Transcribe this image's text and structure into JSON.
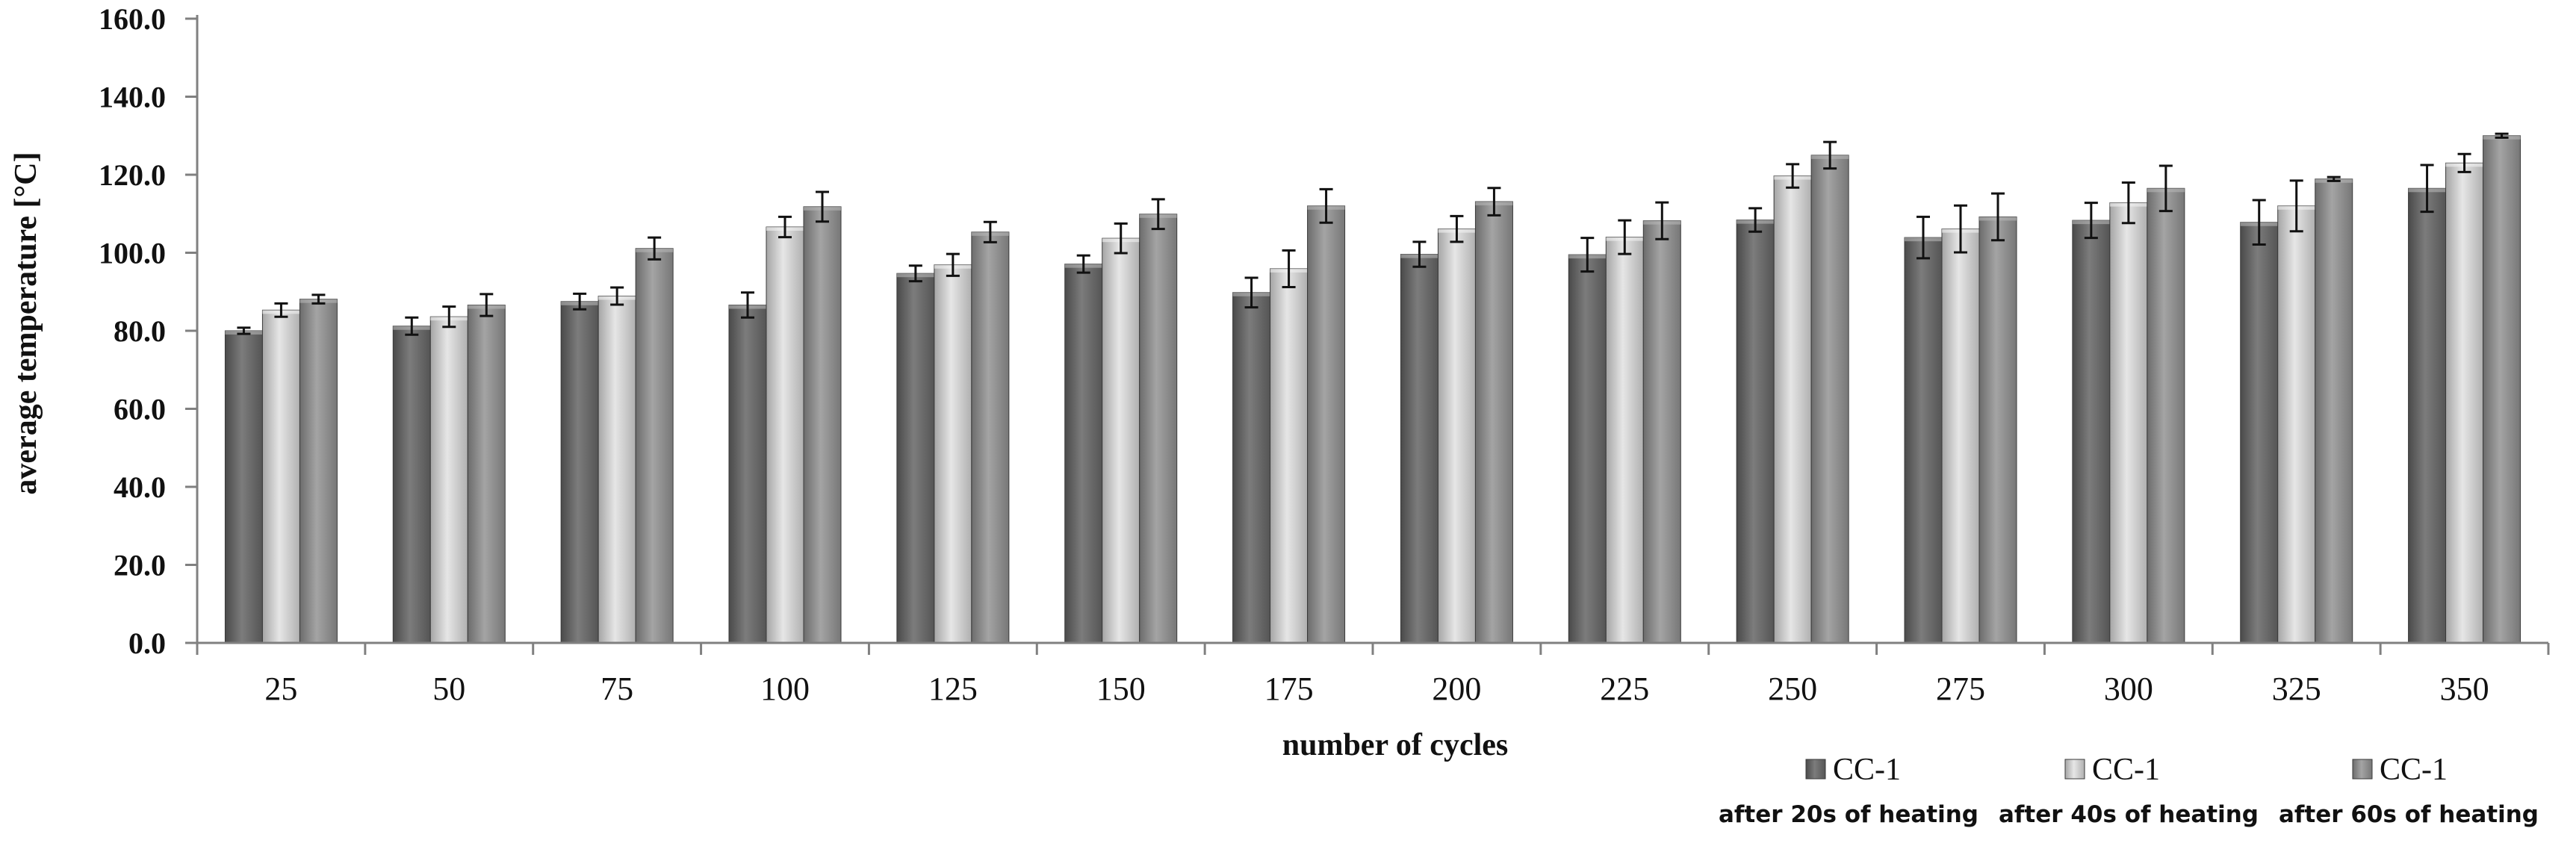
{
  "chart_data": {
    "type": "bar",
    "title": "",
    "xlabel": "number of cycles",
    "ylabel": "average temperature [°C]",
    "ylim": [
      0,
      160
    ],
    "yticks": [
      "0.0",
      "20.0",
      "40.0",
      "60.0",
      "80.0",
      "100.0",
      "120.0",
      "140.0",
      "160.0"
    ],
    "categories": [
      "25",
      "50",
      "75",
      "100",
      "125",
      "150",
      "175",
      "200",
      "225",
      "250",
      "275",
      "300",
      "325",
      "350"
    ],
    "grid": false,
    "legend_position": "bottom-right",
    "error_bars": true,
    "series": [
      {
        "name": "CC-1",
        "subtitle": "after 20s of heating",
        "color": "#6e6e6e",
        "values": [
          80.0,
          81.2,
          87.5,
          86.6,
          94.7,
          97.1,
          89.8,
          99.6,
          99.5,
          108.4,
          103.9,
          108.3,
          107.8,
          116.5
        ],
        "errors": [
          0.8,
          2.2,
          2.0,
          3.2,
          2.0,
          2.2,
          3.8,
          3.2,
          4.3,
          3.0,
          5.3,
          4.5,
          5.7,
          6.0
        ]
      },
      {
        "name": "CC-1",
        "subtitle": "after 40s of heating",
        "color": "#c7c7c7",
        "values": [
          85.3,
          83.6,
          88.9,
          106.6,
          96.9,
          103.7,
          95.9,
          106.1,
          104.0,
          119.7,
          106.1,
          112.8,
          112.0,
          123.0
        ],
        "errors": [
          1.7,
          2.6,
          2.2,
          2.6,
          2.8,
          3.8,
          4.7,
          3.3,
          4.3,
          3.0,
          6.0,
          5.2,
          6.5,
          2.3
        ]
      },
      {
        "name": "CC-1",
        "subtitle": "after 60s of heating",
        "color": "#8e8e8e",
        "values": [
          88.1,
          86.6,
          101.1,
          111.8,
          105.3,
          109.9,
          112.0,
          113.1,
          108.2,
          125.0,
          109.2,
          116.5,
          118.9,
          130.0
        ],
        "errors": [
          1.1,
          2.8,
          2.8,
          3.8,
          2.6,
          3.8,
          4.3,
          3.5,
          4.7,
          3.4,
          6.0,
          5.8,
          0.5,
          0.5
        ]
      }
    ]
  }
}
